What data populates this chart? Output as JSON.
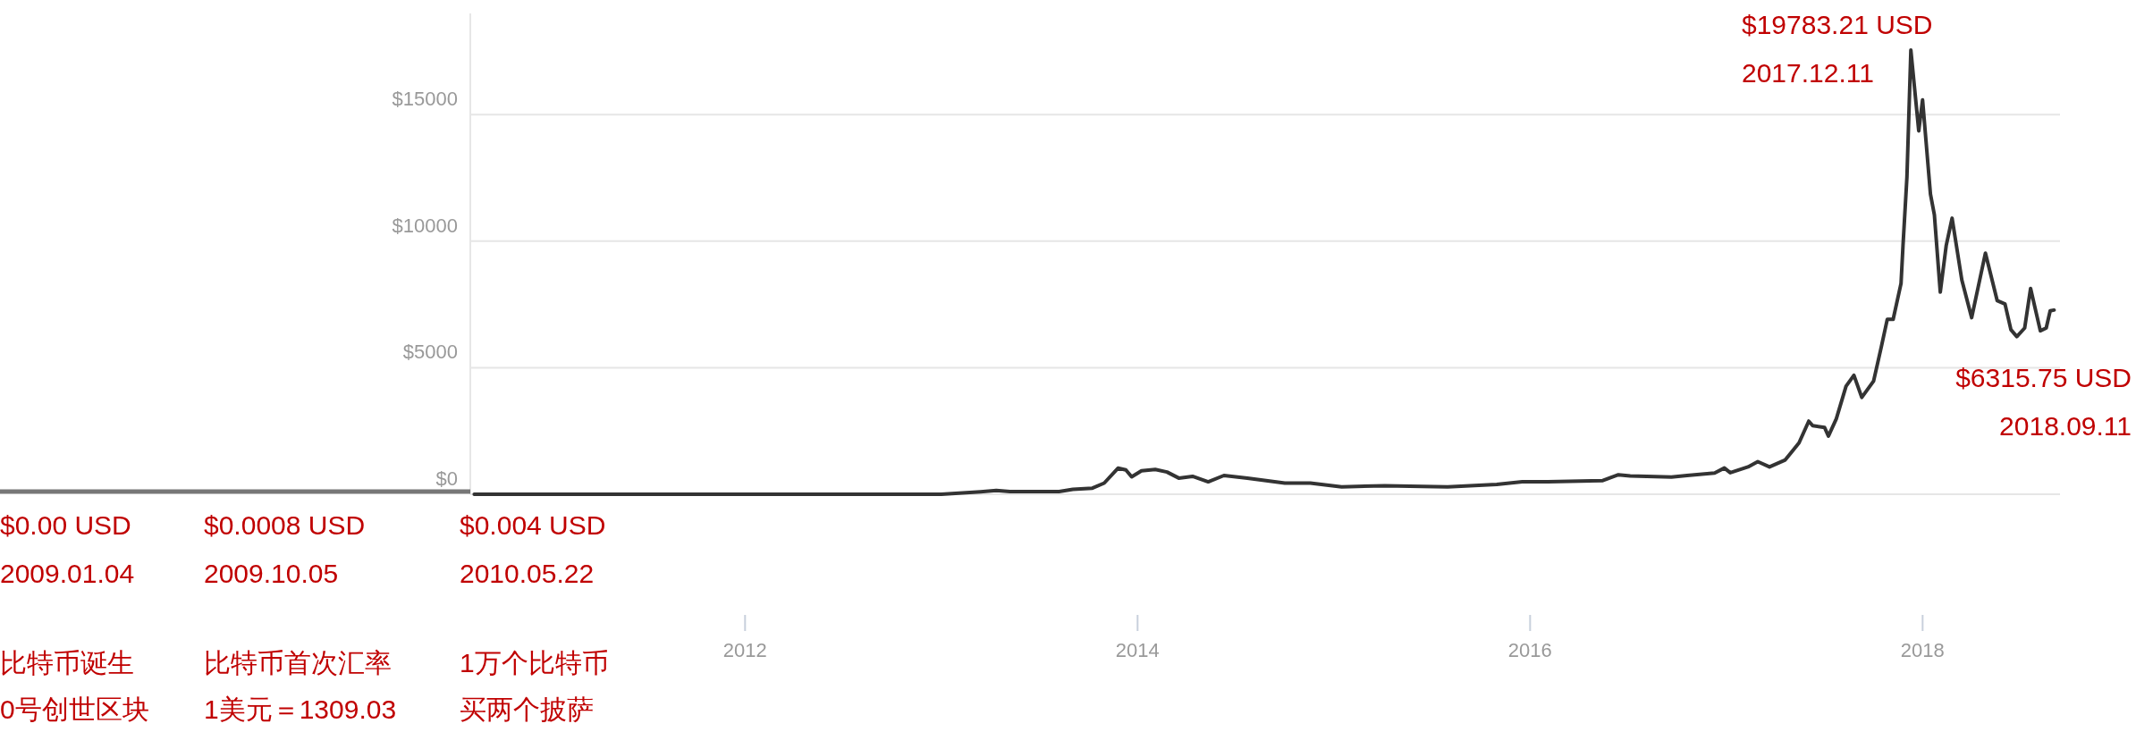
{
  "chart_data": {
    "type": "line",
    "xlim": [
      2010.6,
      2018.7
    ],
    "ylim": [
      0,
      19000
    ],
    "xticks": [
      2012,
      2014,
      2016,
      2018
    ],
    "yticks": [
      {
        "value": 0,
        "label": "$0"
      },
      {
        "value": 5000,
        "label": "$5000"
      },
      {
        "value": 10000,
        "label": "$10000"
      },
      {
        "value": 15000,
        "label": "$15000"
      }
    ],
    "grid": "y",
    "marker": "none",
    "line_style": "solid",
    "series": [
      {
        "color": "#333333",
        "x": [
          2010.62,
          2011.0,
          2011.45,
          2012.0,
          2012.5,
          2013.0,
          2013.2,
          2013.28,
          2013.35,
          2013.6,
          2013.67,
          2013.77,
          2013.83,
          2013.9,
          2013.94,
          2013.97,
          2014.02,
          2014.09,
          2014.15,
          2014.21,
          2014.28,
          2014.36,
          2014.44,
          2014.56,
          2014.75,
          2014.88,
          2015.04,
          2015.26,
          2015.58,
          2015.83,
          2015.96,
          2016.09,
          2016.37,
          2016.45,
          2016.51,
          2016.72,
          2016.8,
          2016.94,
          2016.99,
          2017.02,
          2017.11,
          2017.16,
          2017.22,
          2017.3,
          2017.37,
          2017.42,
          2017.44,
          2017.5,
          2017.52,
          2017.56,
          2017.61,
          2017.65,
          2017.69,
          2017.75,
          2017.79,
          2017.82,
          2017.85,
          2017.89,
          2017.9,
          2017.92,
          2017.94,
          2017.98,
          2018.0,
          2018.04,
          2018.06,
          2018.09,
          2018.12,
          2018.15,
          2018.2,
          2018.25,
          2018.32,
          2018.38,
          2018.42,
          2018.45,
          2018.48,
          2018.52,
          2018.55,
          2018.6,
          2018.63,
          2018.65,
          2018.67
        ],
        "values": [
          0,
          0,
          0,
          0,
          0,
          0,
          100,
          150,
          110,
          110,
          190,
          240,
          440,
          1030,
          960,
          690,
          930,
          980,
          880,
          640,
          710,
          490,
          740,
          640,
          440,
          440,
          290,
          340,
          290,
          390,
          490,
          490,
          540,
          770,
          720,
          680,
          745,
          840,
          1040,
          850,
          1080,
          1290,
          1080,
          1355,
          2030,
          2890,
          2710,
          2640,
          2300,
          2980,
          4270,
          4700,
          3830,
          4470,
          5830,
          6910,
          6910,
          8330,
          9820,
          12530,
          17550,
          14360,
          15580,
          11860,
          11040,
          7990,
          9820,
          10910,
          8470,
          6980,
          9530,
          7650,
          7520,
          6500,
          6230,
          6570,
          8130,
          6460,
          6570,
          7250,
          7280
        ]
      }
    ],
    "annotations": [
      "$0.00 USD\n2009.01.04",
      "$0.0008 USD\n2009.10.05",
      "$0.004 USD\n2010.05.22",
      "比特币诞生",
      "0号创世区块",
      "比特币首次汇率",
      "1美元＝1309.03",
      "1万个比特币",
      "买两个披萨",
      "$19783.21 USD\n2017.12.11",
      "$6315.75 USD\n2018.09.11"
    ]
  }
}
